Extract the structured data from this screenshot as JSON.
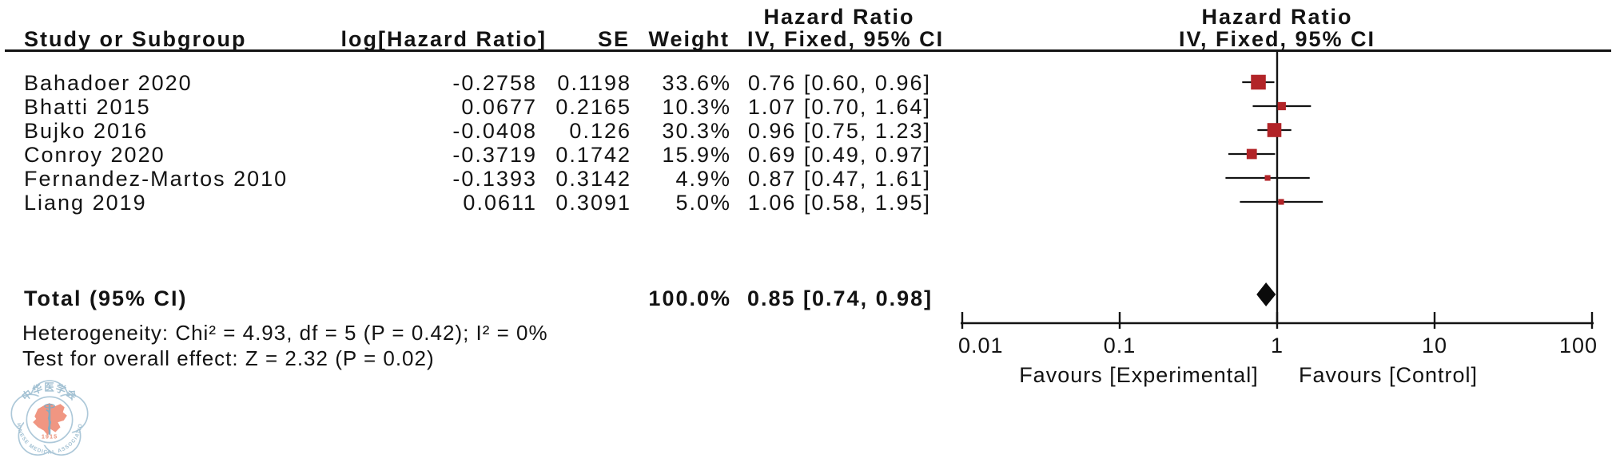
{
  "table": {
    "headers": {
      "study": "Study or Subgroup",
      "log_hr": "log[Hazard Ratio]",
      "se": "SE",
      "weight": "Weight",
      "effect": "Hazard Ratio",
      "method": "IV, Fixed, 95% CI"
    }
  },
  "chart_data": {
    "type": "forest",
    "effect_measure": "Hazard Ratio",
    "method": "IV, Fixed, 95% CI",
    "x_scale": "log10",
    "x_ticks": [
      0.01,
      0.1,
      1,
      10,
      100
    ],
    "xlim": [
      0.01,
      100
    ],
    "axis_label_left": "Favours [Experimental]",
    "axis_label_right": "Favours [Control]",
    "marker_color": "#b22428",
    "diamond_color": "#0b0b0b",
    "line_color": "#131313",
    "studies": [
      {
        "name": "Bahadoer 2020",
        "log_hr": "-0.2758",
        "se": "0.1198",
        "weight": 33.6,
        "weight_label": "33.6%",
        "hr": 0.76,
        "ci_low": 0.6,
        "ci_high": 0.96,
        "ci_label": "0.76 [0.60, 0.96]"
      },
      {
        "name": "Bhatti 2015",
        "log_hr": "0.0677",
        "se": "0.2165",
        "weight": 10.3,
        "weight_label": "10.3%",
        "hr": 1.07,
        "ci_low": 0.7,
        "ci_high": 1.64,
        "ci_label": "1.07 [0.70, 1.64]"
      },
      {
        "name": "Bujko 2016",
        "log_hr": "-0.0408",
        "se": "0.126",
        "weight": 30.3,
        "weight_label": "30.3%",
        "hr": 0.96,
        "ci_low": 0.75,
        "ci_high": 1.23,
        "ci_label": "0.96 [0.75, 1.23]"
      },
      {
        "name": "Conroy 2020",
        "log_hr": "-0.3719",
        "se": "0.1742",
        "weight": 15.9,
        "weight_label": "15.9%",
        "hr": 0.69,
        "ci_low": 0.49,
        "ci_high": 0.97,
        "ci_label": "0.69 [0.49, 0.97]"
      },
      {
        "name": "Fernandez-Martos 2010",
        "log_hr": "-0.1393",
        "se": "0.3142",
        "weight": 4.9,
        "weight_label": "4.9%",
        "hr": 0.87,
        "ci_low": 0.47,
        "ci_high": 1.61,
        "ci_label": "0.87 [0.47, 1.61]"
      },
      {
        "name": "Liang 2019",
        "log_hr": "0.0611",
        "se": "0.3091",
        "weight": 5.0,
        "weight_label": "5.0%",
        "hr": 1.06,
        "ci_low": 0.58,
        "ci_high": 1.95,
        "ci_label": "1.06 [0.58, 1.95]"
      }
    ],
    "total": {
      "label": "Total (95% CI)",
      "weight_label": "100.0%",
      "hr": 0.85,
      "ci_low": 0.74,
      "ci_high": 0.98,
      "ci_label": "0.85 [0.74, 0.98]"
    },
    "heterogeneity": "Heterogeneity: Chi² = 4.93, df = 5 (P = 0.42); I² = 0%",
    "overall_effect": "Test for overall effect: Z = 2.32 (P = 0.02)"
  },
  "logo": {
    "organization": "Chinese Medical Association",
    "top_text": "中华医学会",
    "bottom_text": "CHINESE MEDICAL ASSOCIATION",
    "year": "1915"
  }
}
